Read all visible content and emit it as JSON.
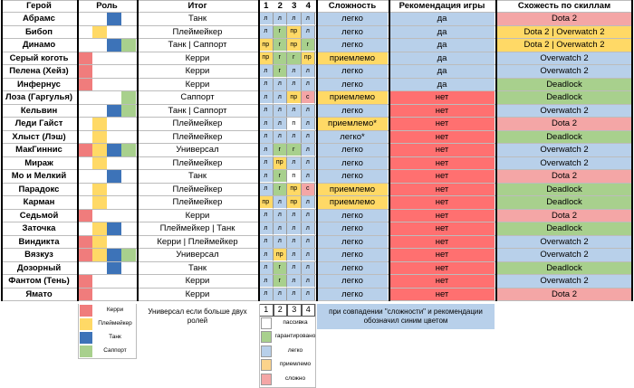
{
  "headers": {
    "hero": "Герой",
    "role": "Роль",
    "itog": "Итог",
    "skill_nums": [
      "1",
      "2",
      "3",
      "4"
    ],
    "complexity": "Сложность",
    "recommendation": "Рекомендация игры",
    "similarity": "Схожесть по скиллам"
  },
  "colors": {
    "red": "#f07c7c",
    "yellow": "#ffd966",
    "blue": "#3d73b8",
    "green": "#a8d08d",
    "light_blue": "#b8d0ea",
    "light_green": "#d6e9c6",
    "orange": "#fbd38b",
    "pink": "#f4a6a6",
    "bright_red": "#ff7070"
  },
  "rows": [
    {
      "hero": "Абрамс",
      "roles": [
        "",
        "",
        "blue",
        ""
      ],
      "itog": "Танк",
      "skills": [
        "л",
        "л",
        "л",
        "л"
      ],
      "complexity": "легко",
      "rec": "да",
      "sim": "Dota 2"
    },
    {
      "hero": "Бибоп",
      "roles": [
        "",
        "yellow",
        "",
        ""
      ],
      "itog": "Плеймейкер",
      "skills": [
        "л",
        "г",
        "пр",
        "л"
      ],
      "complexity": "легко",
      "rec": "да",
      "sim": "Dota 2 | Overwatch 2"
    },
    {
      "hero": "Динамо",
      "roles": [
        "",
        "",
        "blue",
        "green"
      ],
      "itog": "Танк | Саппорт",
      "skills": [
        "пр",
        "г",
        "пр",
        "г"
      ],
      "complexity": "легко",
      "rec": "да",
      "sim": "Dota 2 | Overwatch 2"
    },
    {
      "hero": "Серый коготь",
      "roles": [
        "red",
        "",
        "",
        ""
      ],
      "itog": "Керри",
      "skills": [
        "пр",
        "г",
        "г",
        "пр"
      ],
      "complexity": "приемлемо",
      "rec": "да",
      "sim": "Overwatch 2"
    },
    {
      "hero": "Пелена (Хейз)",
      "roles": [
        "red",
        "",
        "",
        ""
      ],
      "itog": "Керри",
      "skills": [
        "л",
        "г",
        "л",
        "л"
      ],
      "complexity": "легко",
      "rec": "да",
      "sim": "Overwatch 2"
    },
    {
      "hero": "Инфернус",
      "roles": [
        "red",
        "",
        "",
        ""
      ],
      "itog": "Керри",
      "skills": [
        "л",
        "л",
        "л",
        "л"
      ],
      "complexity": "легко",
      "rec": "да",
      "sim": "Deadlock"
    },
    {
      "hero": "Лоза (Гаргулья)",
      "roles": [
        "",
        "",
        "",
        "green"
      ],
      "itog": "Саппорт",
      "skills": [
        "л",
        "л",
        "пр",
        "с"
      ],
      "complexity": "приемлемо",
      "rec": "нет",
      "sim": "Deadlock"
    },
    {
      "hero": "Кельвин",
      "roles": [
        "",
        "",
        "blue",
        "green"
      ],
      "itog": "Танк | Саппорт",
      "skills": [
        "л",
        "л",
        "л",
        "л"
      ],
      "complexity": "легко",
      "rec": "нет",
      "sim": "Overwatch 2"
    },
    {
      "hero": "Леди Гайст",
      "roles": [
        "",
        "yellow",
        "",
        ""
      ],
      "itog": "Плеймейкер",
      "skills": [
        "л",
        "л",
        "п",
        "л"
      ],
      "complexity": "приемлемо*",
      "rec": "нет",
      "sim": "Dota 2"
    },
    {
      "hero": "Хлыст (Лэш)",
      "roles": [
        "",
        "yellow",
        "",
        ""
      ],
      "itog": "Плеймейкер",
      "skills": [
        "л",
        "л",
        "л",
        "л"
      ],
      "complexity": "легко*",
      "rec": "нет",
      "sim": "Deadlock"
    },
    {
      "hero": "МакГиннис",
      "roles": [
        "red",
        "yellow",
        "blue",
        "green"
      ],
      "itog": "Универсал",
      "skills": [
        "л",
        "г",
        "г",
        "л"
      ],
      "complexity": "легко",
      "rec": "нет",
      "sim": "Overwatch 2"
    },
    {
      "hero": "Мираж",
      "roles": [
        "",
        "yellow",
        "",
        ""
      ],
      "itog": "Плеймейкер",
      "skills": [
        "л",
        "пр",
        "л",
        "л"
      ],
      "complexity": "легко",
      "rec": "нет",
      "sim": "Overwatch 2"
    },
    {
      "hero": "Мо и Мелкий",
      "roles": [
        "",
        "",
        "blue",
        ""
      ],
      "itog": "Танк",
      "skills": [
        "л",
        "г",
        "п",
        "л"
      ],
      "complexity": "легко",
      "rec": "нет",
      "sim": "Dota 2"
    },
    {
      "hero": "Парадокс",
      "roles": [
        "",
        "yellow",
        "",
        ""
      ],
      "itog": "Плеймейкер",
      "skills": [
        "л",
        "г",
        "пр",
        "с"
      ],
      "complexity": "приемлемо",
      "rec": "нет",
      "sim": "Deadlock"
    },
    {
      "hero": "Карман",
      "roles": [
        "",
        "yellow",
        "",
        ""
      ],
      "itog": "Плеймейкер",
      "skills": [
        "пр",
        "л",
        "пр",
        "л"
      ],
      "complexity": "приемлемо",
      "rec": "нет",
      "sim": "Deadlock"
    },
    {
      "hero": "Седьмой",
      "roles": [
        "red",
        "",
        "",
        ""
      ],
      "itog": "Керри",
      "skills": [
        "л",
        "л",
        "л",
        "л"
      ],
      "complexity": "легко",
      "rec": "нет",
      "sim": "Dota 2"
    },
    {
      "hero": "Заточка",
      "roles": [
        "",
        "yellow",
        "blue",
        ""
      ],
      "itog": "Плеймейкер | Танк",
      "skills": [
        "л",
        "л",
        "л",
        "л"
      ],
      "complexity": "легко",
      "rec": "нет",
      "sim": "Deadlock"
    },
    {
      "hero": "Виндикта",
      "roles": [
        "red",
        "yellow",
        "",
        ""
      ],
      "itog": "Керри | Плеймейкер",
      "skills": [
        "л",
        "л",
        "л",
        "л"
      ],
      "complexity": "легко",
      "rec": "нет",
      "sim": "Overwatch 2"
    },
    {
      "hero": "Вязкуз",
      "roles": [
        "red",
        "yellow",
        "blue",
        "green"
      ],
      "itog": "Универсал",
      "skills": [
        "л",
        "пр",
        "л",
        "л"
      ],
      "complexity": "легко",
      "rec": "нет",
      "sim": "Overwatch 2"
    },
    {
      "hero": "Дозорный",
      "roles": [
        "",
        "",
        "blue",
        ""
      ],
      "itog": "Танк",
      "skills": [
        "л",
        "г",
        "л",
        "л"
      ],
      "complexity": "легко",
      "rec": "нет",
      "sim": "Deadlock"
    },
    {
      "hero": "Фантом (Тень)",
      "roles": [
        "red",
        "",
        "",
        ""
      ],
      "itog": "Керри",
      "skills": [
        "л",
        "г",
        "л",
        "л"
      ],
      "complexity": "легко",
      "rec": "нет",
      "sim": "Overwatch 2"
    },
    {
      "hero": "Ямато",
      "roles": [
        "red",
        "",
        "",
        ""
      ],
      "itog": "Керри",
      "skills": [
        "л",
        "л",
        "л",
        "л"
      ],
      "complexity": "легко",
      "rec": "нет",
      "sim": "Dota 2"
    }
  ],
  "role_legend": [
    {
      "color": "red",
      "label": "Керри"
    },
    {
      "color": "yellow",
      "label": "Плеймейкер"
    },
    {
      "color": "blue",
      "label": "Танк"
    },
    {
      "color": "green",
      "label": "Саппорт"
    }
  ],
  "universal_note": "Универсал если больше двух ролей",
  "skill_legend_nums": [
    "1",
    "2",
    "3",
    "4"
  ],
  "skill_legend": [
    {
      "color": "white",
      "label": "пассивка"
    },
    {
      "color": "green",
      "label": "гарантировано"
    },
    {
      "color": "light_blue",
      "label": "легко"
    },
    {
      "color": "orange",
      "label": "приемлемо"
    },
    {
      "color": "pink",
      "label": "сложно"
    }
  ],
  "rec_note": "при совпадении \"сложности\" и рекомендации обозначил синим цветом"
}
